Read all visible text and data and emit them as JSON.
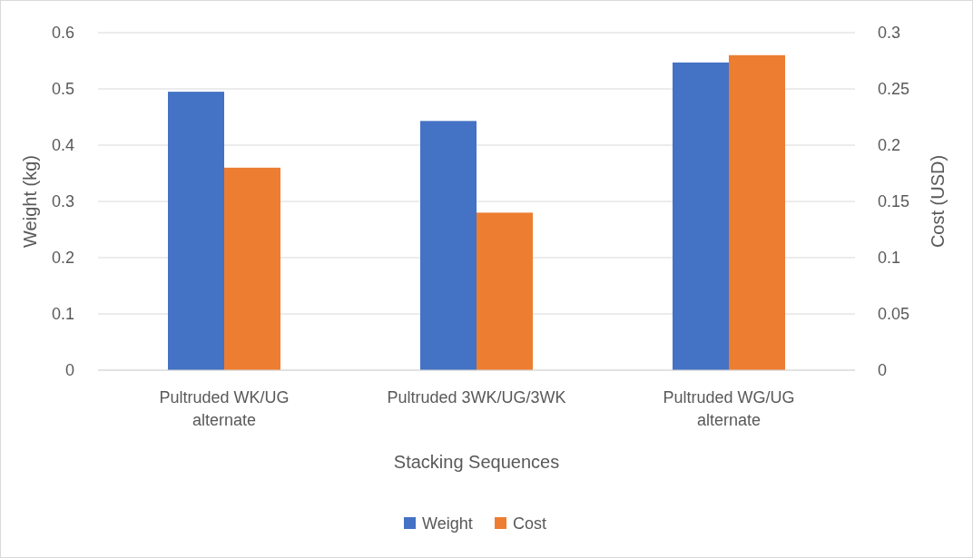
{
  "chart_data": {
    "type": "bar",
    "xlabel": "Stacking Sequences",
    "ylabel": "Weight (kg)",
    "y2label": "Cost (USD)",
    "categories": [
      "Pultruded WK/UG alternate",
      "Pultruded 3WK/UG/3WK",
      "Pultruded WG/UG alternate"
    ],
    "series": [
      {
        "name": "Weight",
        "color": "#4472c4",
        "values": [
          0.495,
          0.443,
          0.547
        ]
      },
      {
        "name": "Cost",
        "color": "#ed7d31",
        "values": [
          0.18,
          0.14,
          0.28
        ],
        "axis": "y2"
      }
    ],
    "ylim": [
      0,
      0.6
    ],
    "yticks": [
      0,
      0.1,
      0.2,
      0.3,
      0.4,
      0.5,
      0.6
    ],
    "y2lim": [
      0,
      0.3
    ],
    "y2ticks": [
      0,
      0.05,
      0.1,
      0.15,
      0.2,
      0.25,
      0.3
    ],
    "grid": true,
    "legend": "bottom"
  }
}
